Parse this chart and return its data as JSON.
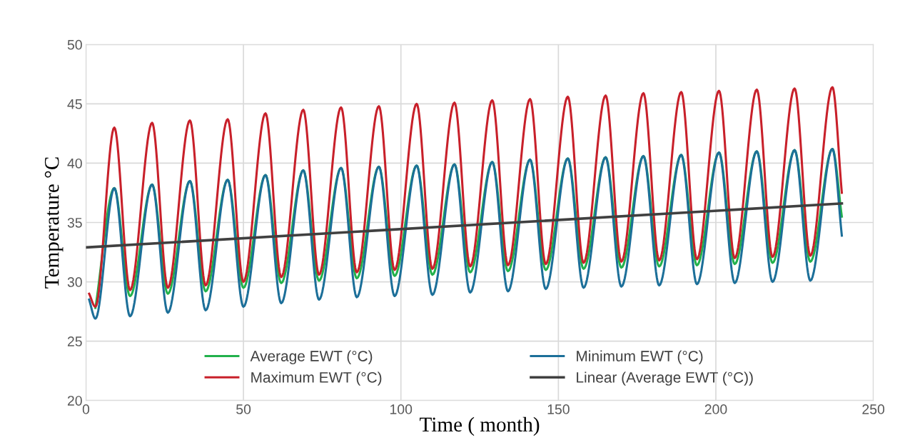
{
  "chart_data": {
    "type": "line",
    "xlabel": "Time ( month)",
    "ylabel": "Temperature °C",
    "x": [
      1,
      3,
      9,
      14,
      21,
      26,
      33,
      38,
      45,
      50,
      57,
      62,
      69,
      74,
      81,
      86,
      93,
      98,
      105,
      110,
      117,
      122,
      129,
      134,
      141,
      146,
      153,
      158,
      165,
      170,
      177,
      182,
      189,
      194,
      201,
      206,
      213,
      218,
      225,
      230,
      237,
      240
    ],
    "series": [
      {
        "name": "Average EWT (°C)",
        "color": "#22b14c",
        "values": [
          null,
          27.8,
          37.9,
          28.8,
          38.2,
          29.0,
          38.5,
          29.2,
          38.6,
          29.5,
          39.0,
          29.9,
          39.4,
          30.1,
          39.6,
          30.3,
          39.7,
          30.5,
          39.8,
          30.6,
          39.9,
          30.8,
          40.1,
          30.9,
          40.3,
          31.0,
          40.4,
          31.1,
          40.5,
          31.2,
          40.6,
          31.3,
          40.7,
          31.4,
          40.9,
          31.5,
          41.0,
          31.6,
          41.1,
          31.7,
          41.2,
          35.5
        ]
      },
      {
        "name": "Maximum EWT (°C)",
        "color": "#c8202a",
        "values": [
          29.0,
          27.9,
          43.0,
          29.3,
          43.4,
          29.5,
          43.6,
          29.7,
          43.7,
          30.0,
          44.2,
          30.4,
          44.5,
          30.6,
          44.7,
          30.8,
          44.8,
          31.0,
          45.0,
          31.1,
          45.1,
          31.3,
          45.3,
          31.4,
          45.4,
          31.5,
          45.6,
          31.6,
          45.7,
          31.7,
          45.9,
          31.8,
          46.0,
          31.9,
          46.1,
          32.0,
          46.2,
          32.1,
          46.3,
          32.2,
          46.4,
          37.5
        ]
      },
      {
        "name": "Minimum EWT (°C)",
        "color": "#1c6f99",
        "values": [
          28.5,
          26.9,
          37.9,
          27.1,
          38.2,
          27.4,
          38.5,
          27.6,
          38.6,
          27.9,
          39.0,
          28.2,
          39.4,
          28.5,
          39.6,
          28.7,
          39.7,
          28.8,
          39.8,
          28.9,
          39.9,
          29.1,
          40.1,
          29.2,
          40.3,
          29.4,
          40.4,
          29.5,
          40.5,
          29.6,
          40.6,
          29.7,
          40.7,
          29.8,
          40.9,
          29.9,
          41.0,
          30.0,
          41.1,
          30.1,
          41.2,
          33.9
        ]
      },
      {
        "name": "Linear (Average EWT (°C))",
        "color": "#404040",
        "x": [
          0,
          240
        ],
        "values": [
          32.9,
          36.6
        ]
      }
    ],
    "xlim": [
      0,
      250
    ],
    "xticks": [
      0,
      50,
      100,
      150,
      200,
      250
    ],
    "ylim": [
      20,
      50
    ],
    "yticks": [
      20,
      25,
      30,
      35,
      40,
      45,
      50
    ],
    "grid": true,
    "legend": "bottom",
    "marker": "none",
    "line_style": "solid"
  }
}
